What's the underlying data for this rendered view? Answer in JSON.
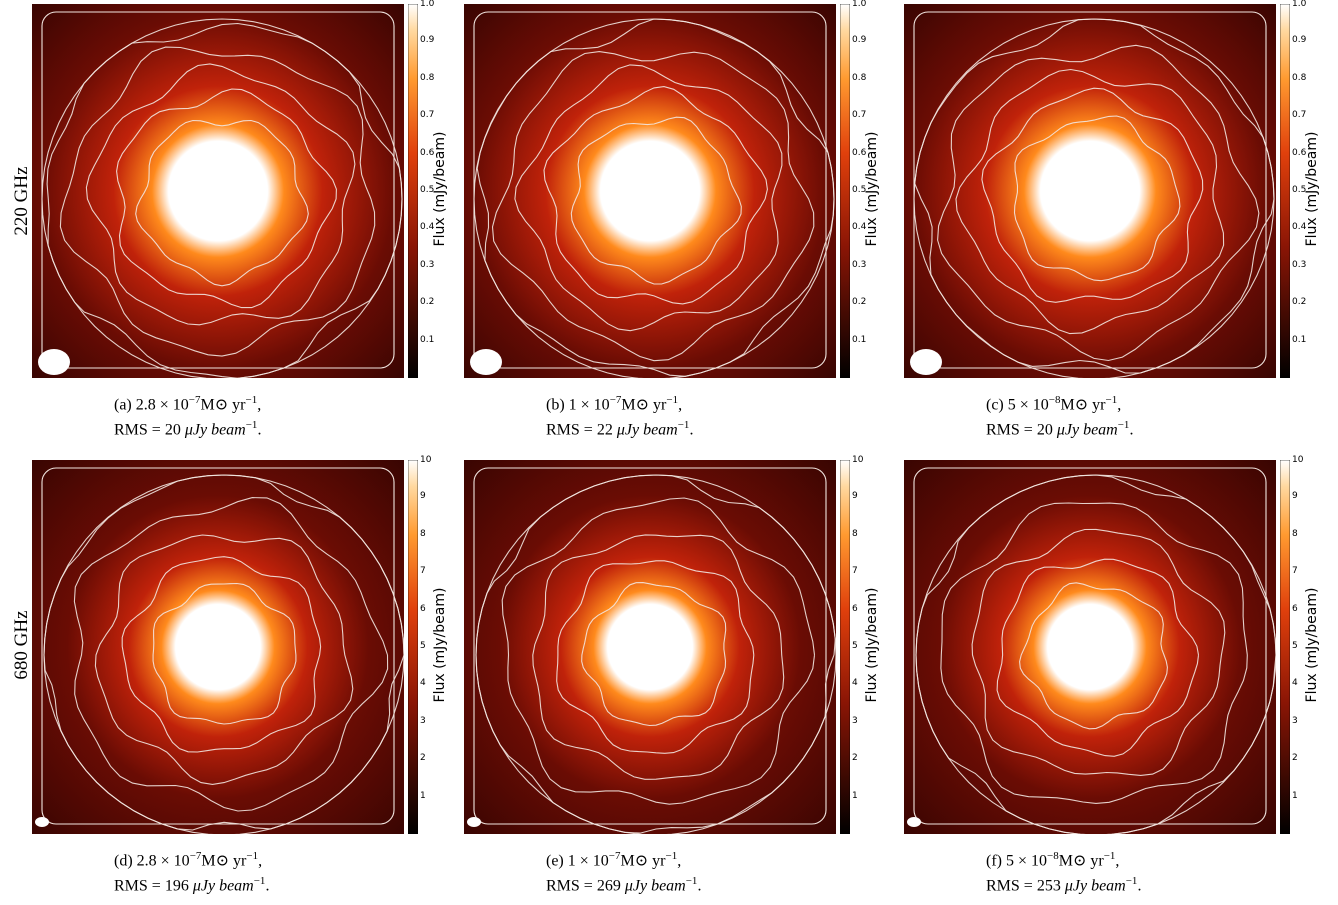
{
  "row_labels": [
    "220 GHz",
    "680 GHz"
  ],
  "colorbar_label": "Flux (mJy/beam)",
  "colorbar_ticks_top": [
    "1.0",
    "0.9",
    "0.8",
    "0.7",
    "0.6",
    "0.5",
    "0.4",
    "0.3",
    "0.2",
    "0.1"
  ],
  "colorbar_ticks_bottom": [
    "10",
    "9",
    "8",
    "7",
    "6",
    "5",
    "4",
    "3",
    "2",
    "1"
  ],
  "colors": {
    "core": "#ffffff",
    "hot": "#ff8a1c",
    "mid": "#c0220a",
    "dark": "#3a0502",
    "contour": "#f2e6e0"
  },
  "panels": [
    {
      "tag": "(a)",
      "rate_mant": "2.8 × 10",
      "rate_exp": "−7",
      "rms": "20",
      "rms_label": "RMS =",
      "unit": "μJy beam",
      "unit_exp": "−1"
    },
    {
      "tag": "(b)",
      "rate_mant": "1 × 10",
      "rate_exp": "−7",
      "rms": "22",
      "rms_label": "RMS =",
      "unit": "μJy beam",
      "unit_exp": "−1"
    },
    {
      "tag": "(c)",
      "rate_mant": "5 × 10",
      "rate_exp": "−8",
      "rms": "20",
      "rms_label": "RMS =",
      "unit": "μJy beam",
      "unit_exp": "−1"
    },
    {
      "tag": "(d)",
      "rate_mant": "2.8 × 10",
      "rate_exp": "−7",
      "rms": "196",
      "rms_label": "RMS =",
      "unit": "μJy beam",
      "unit_exp": "−1"
    },
    {
      "tag": "(e)",
      "rate_mant": "1 × 10",
      "rate_exp": "−7",
      "rms": "269",
      "rms_label": "RMS =",
      "unit": "μJy beam",
      "unit_exp": "−1"
    },
    {
      "tag": "(f)",
      "rate_mant": "5 × 10",
      "rate_exp": "−8",
      "rms": "253",
      "rms_label": "RMS =",
      "unit": "μJy beam",
      "unit_exp": "−1"
    }
  ],
  "rate_unit": "M⊙ yr",
  "rate_unit_exp": "−1"
}
